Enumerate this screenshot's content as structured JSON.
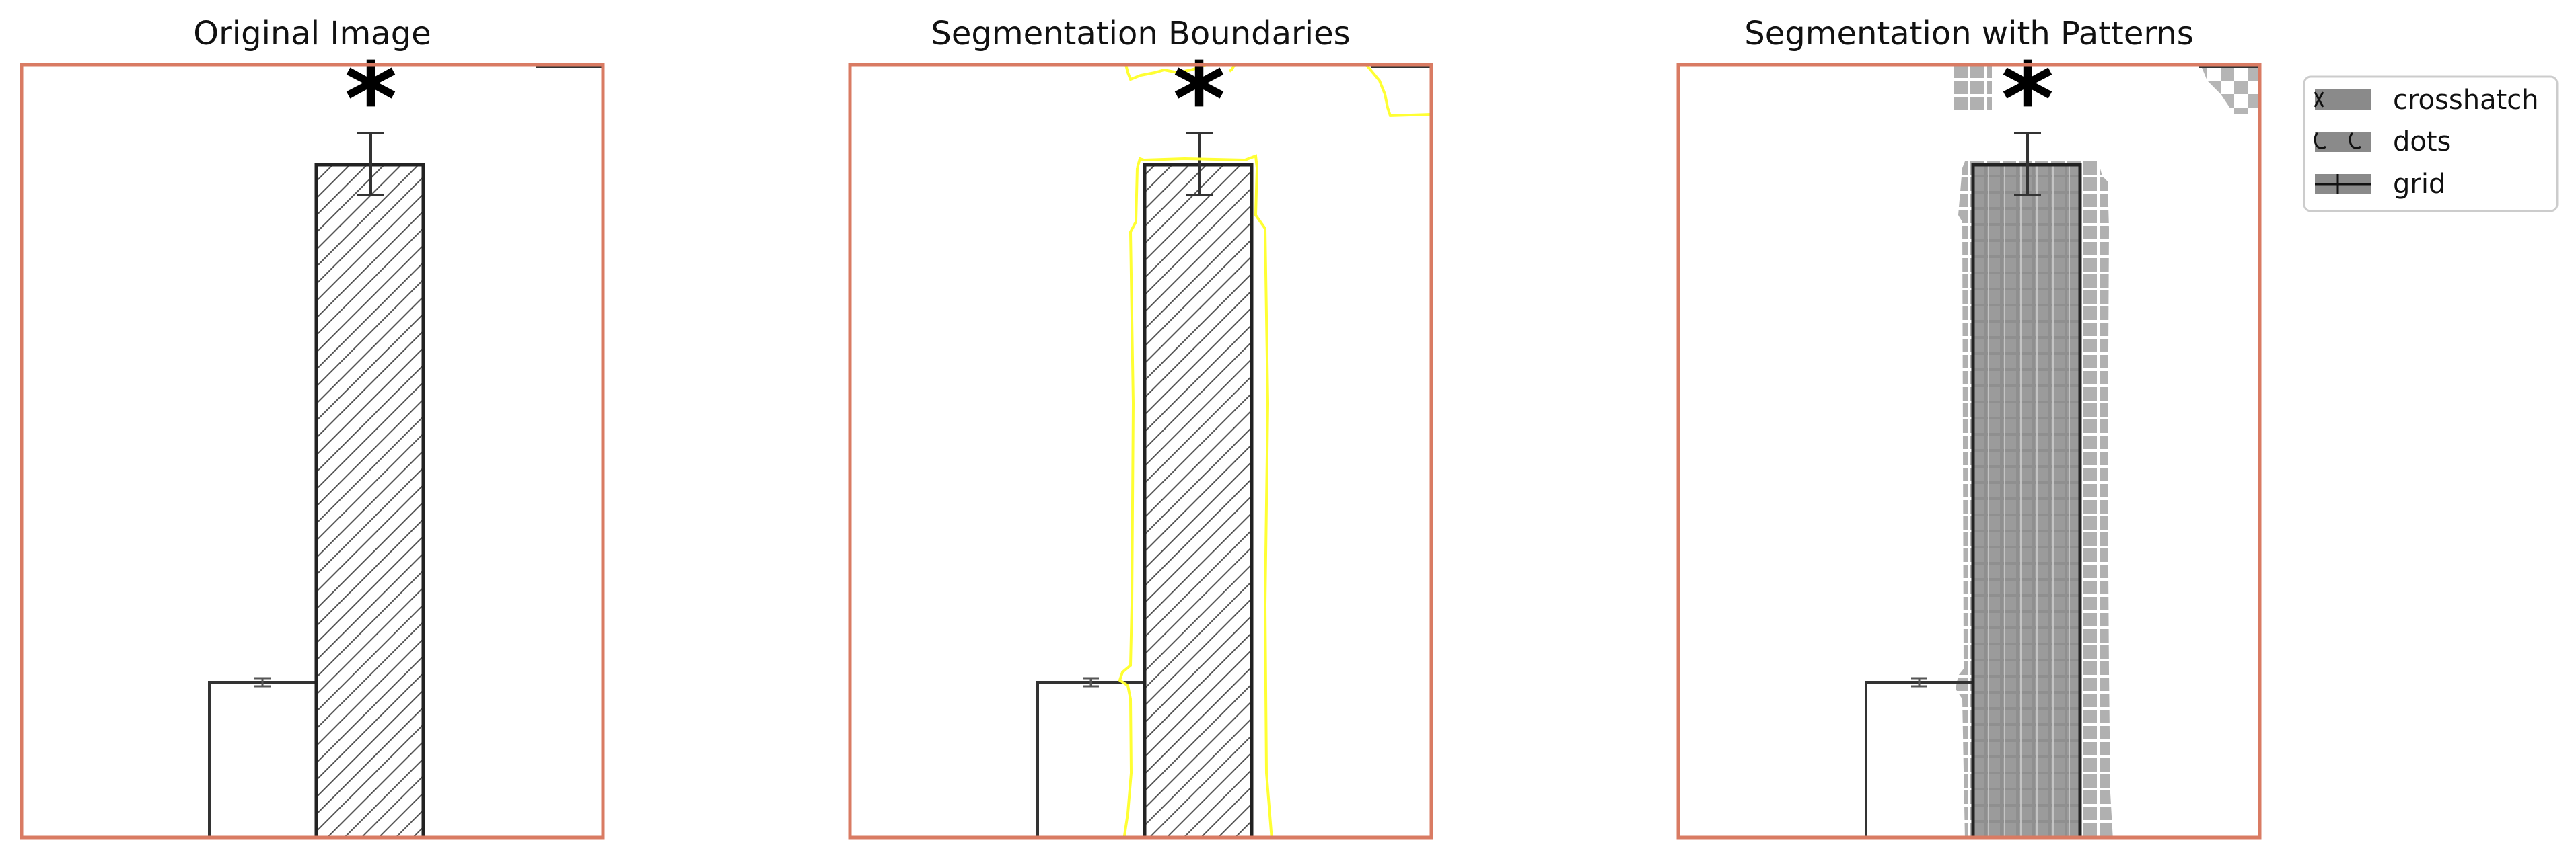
{
  "panels": [
    {
      "title": "Original Image",
      "overlay": "none"
    },
    {
      "title": "Segmentation Boundaries",
      "overlay": "boundaries"
    },
    {
      "title": "Segmentation with Patterns",
      "overlay": "patterns"
    }
  ],
  "figure": {
    "significance_marker": "*",
    "bar_fill": "diagonal-hatch",
    "frame_color": "#d97b63",
    "boundary_color": "#ffff33",
    "pattern_color": "#a8a8a8"
  },
  "legend": {
    "items": [
      {
        "label": "crosshatch",
        "icon": "crosshatch-icon"
      },
      {
        "label": "dots",
        "icon": "dots-icon"
      },
      {
        "label": "grid",
        "icon": "grid-icon"
      }
    ]
  }
}
